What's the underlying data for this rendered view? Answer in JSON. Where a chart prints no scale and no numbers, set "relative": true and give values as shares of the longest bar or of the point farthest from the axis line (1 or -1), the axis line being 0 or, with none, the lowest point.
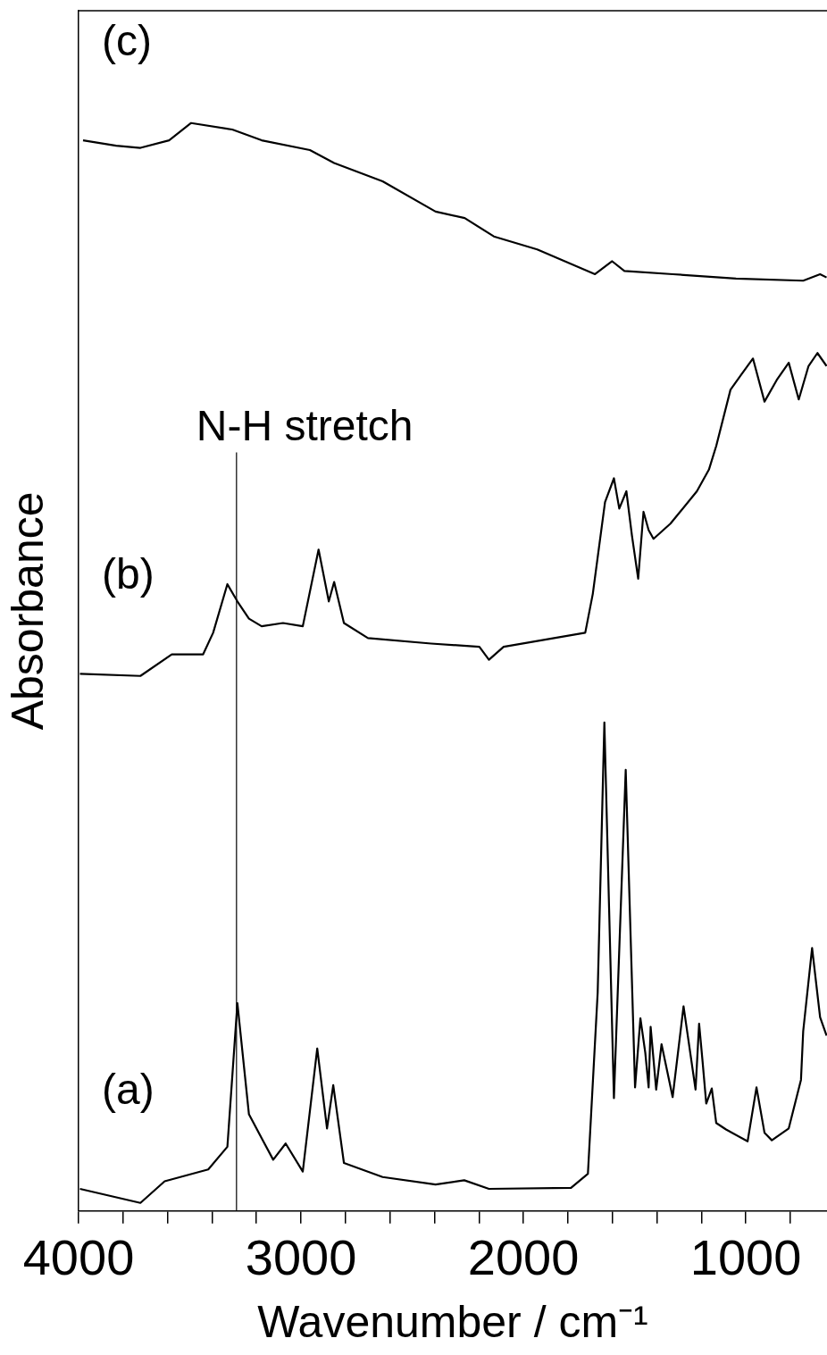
{
  "chart_data": {
    "type": "line",
    "relative": true,
    "xlabel": "Wavenumber / cm⁻¹",
    "ylabel": "Absorbance",
    "xlim": [
      4000,
      635
    ],
    "xticks": [
      4000,
      {
        "value": 3800,
        "label": null
      },
      {
        "value": 3600,
        "label": null
      },
      {
        "value": 3400,
        "label": null
      },
      {
        "value": 3200,
        "label": null
      },
      3000,
      {
        "value": 2800,
        "label": null
      },
      {
        "value": 2600,
        "label": null
      },
      {
        "value": 2400,
        "label": null
      },
      {
        "value": 2200,
        "label": null
      },
      2000,
      {
        "value": 1800,
        "label": null
      },
      {
        "value": 1600,
        "label": null
      },
      {
        "value": 1400,
        "label": null
      },
      {
        "value": 1200,
        "label": null
      },
      1000,
      {
        "value": 800,
        "label": null
      }
    ],
    "grid": false,
    "legend": false,
    "marker": "none",
    "line_style": "solid",
    "ref_lines": [
      {
        "axis": "x",
        "value": 3290,
        "label": "N-H stretch",
        "color": "#000000"
      }
    ],
    "series": [
      {
        "name": "(a)",
        "color": "#000000",
        "x": [
          3994,
          3722,
          3613,
          3417,
          3331,
          3286,
          3234,
          3177,
          3125,
          3069,
          2992,
          2927,
          2883,
          2855,
          2807,
          2633,
          2395,
          2266,
          2155,
          1786,
          1710,
          1666,
          1636,
          1593,
          1540,
          1498,
          1474,
          1452,
          1437,
          1428,
          1403,
          1379,
          1329,
          1280,
          1226,
          1210,
          1194,
          1178,
          1153,
          1133,
          1089,
          992,
          952,
          916,
          883,
          807,
          752,
          742,
          702,
          666,
          637
        ],
        "values": [
          0.013,
          0,
          0.02,
          0.031,
          0.052,
          0.185,
          0.082,
          0.06,
          0.04,
          0.055,
          0.029,
          0.143,
          0.069,
          0.109,
          0.037,
          0.024,
          0.017,
          0.021,
          0.013,
          0.014,
          0.027,
          0.195,
          0.445,
          0.097,
          0.401,
          0.107,
          0.171,
          0.139,
          0.107,
          0.163,
          0.105,
          0.147,
          0.098,
          0.182,
          0.105,
          0.166,
          0.13,
          0.092,
          0.106,
          0.074,
          0.068,
          0.057,
          0.107,
          0.065,
          0.058,
          0.069,
          0.114,
          0.159,
          0.236,
          0.172,
          0.155
        ]
      },
      {
        "name": "(b)",
        "color": "#000000",
        "x": [
          3994,
          3722,
          3581,
          3440,
          3395,
          3331,
          3286,
          3234,
          3177,
          3081,
          2992,
          2921,
          2875,
          2851,
          2807,
          2699,
          2415,
          2198,
          2155,
          2089,
          1722,
          1688,
          1633,
          1593,
          1569,
          1537,
          1512,
          1484,
          1460,
          1437,
          1415,
          1339,
          1220,
          1166,
          1133,
          1069,
          1024,
          968,
          916,
          861,
          807,
          762,
          718,
          678,
          637
        ],
        "values": [
          0.49,
          0.488,
          0.508,
          0.508,
          0.528,
          0.573,
          0.557,
          0.541,
          0.534,
          0.537,
          0.534,
          0.605,
          0.557,
          0.575,
          0.537,
          0.523,
          0.518,
          0.515,
          0.503,
          0.515,
          0.528,
          0.564,
          0.649,
          0.671,
          0.643,
          0.659,
          0.618,
          0.578,
          0.64,
          0.623,
          0.615,
          0.629,
          0.659,
          0.679,
          0.701,
          0.753,
          0.766,
          0.782,
          0.742,
          0.762,
          0.778,
          0.744,
          0.775,
          0.787,
          0.775
        ]
      },
      {
        "name": "(c)",
        "color": "#000000",
        "x": [
          3980,
          3831,
          3722,
          3593,
          3494,
          3309,
          3177,
          2960,
          2851,
          2633,
          2395,
          2264,
          2133,
          1938,
          1678,
          1601,
          1546,
          1328,
          1044,
          742,
          666,
          637
        ],
        "values": [
          0.984,
          0.979,
          0.977,
          0.984,
          1,
          0.994,
          0.984,
          0.975,
          0.963,
          0.946,
          0.918,
          0.912,
          0.895,
          0.883,
          0.86,
          0.872,
          0.863,
          0.86,
          0.856,
          0.854,
          0.86,
          0.857
        ]
      }
    ]
  }
}
